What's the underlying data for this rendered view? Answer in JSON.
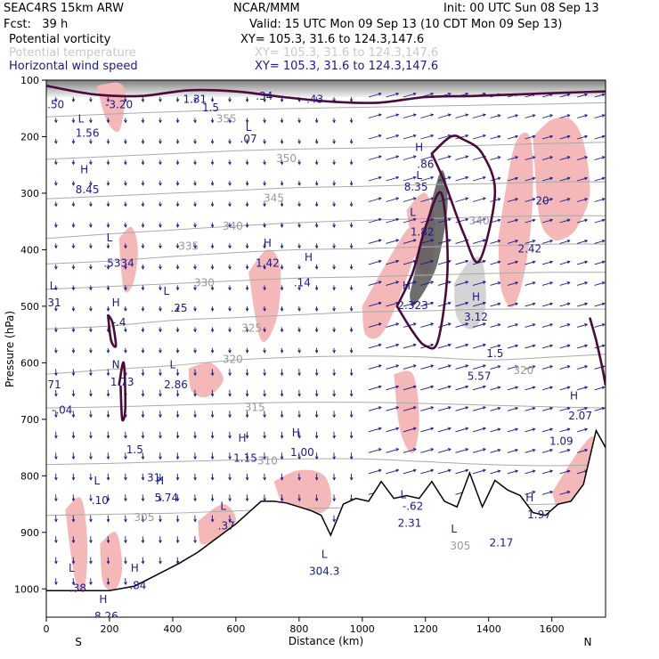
{
  "header": {
    "model": "SEAC4RS 15km ARW",
    "org": "NCAR/MMM",
    "init": "Init: 00 UTC Sun 08 Sep 13",
    "fcst": "Fcst:   39 h",
    "valid": "Valid: 15 UTC Mon 09 Sep 13 (10 CDT Mon 09 Sep 13)",
    "fields": [
      {
        "name": "Potential vorticity",
        "xy": "XY= 105.3, 31.6 to 124.3,147.6",
        "color": "#000000"
      },
      {
        "name": "Potential temperature",
        "xy": "XY= 105.3, 31.6 to 124.3,147.6",
        "color": "#c8c8c8"
      },
      {
        "name": "Horizontal wind speed",
        "xy": "XY= 105.3, 31.6 to 124.3,147.6",
        "color": "#1a1a8c"
      }
    ]
  },
  "colors": {
    "pv_fill": "#f4b8b8",
    "pv_contour": "#4a0a3a",
    "theta": "#aaaaaa",
    "wind": "#1a1a8c",
    "terrain": "#000000"
  },
  "chart_data": {
    "type": "cross-section",
    "xlabel": "Distance (km)",
    "ylabel": "Pressure (hPa)",
    "xlim": [
      0,
      1770
    ],
    "ylim": [
      1050,
      100
    ],
    "x_ticks": [
      "0",
      "200",
      "400",
      "600",
      "800",
      "1000",
      "1200",
      "1400",
      "1600"
    ],
    "x_tick_values": [
      0,
      200,
      400,
      600,
      800,
      1000,
      1200,
      1400,
      1600
    ],
    "y_ticks": [
      "100",
      "200",
      "300",
      "400",
      "500",
      "600",
      "700",
      "800",
      "900",
      "1000"
    ],
    "y_tick_values": [
      100,
      200,
      300,
      400,
      500,
      600,
      700,
      800,
      900,
      1000
    ],
    "end_labels": {
      "left": "S",
      "right": "N"
    },
    "terrain": {
      "x": [
        0,
        100,
        200,
        280,
        350,
        420,
        480,
        540,
        600,
        640,
        680,
        720,
        760,
        800,
        840,
        870,
        900,
        940,
        980,
        1020,
        1060,
        1100,
        1140,
        1180,
        1220,
        1260,
        1300,
        1340,
        1380,
        1420,
        1460,
        1500,
        1540,
        1580,
        1620,
        1660,
        1700,
        1740,
        1770
      ],
      "p": [
        1003,
        1003,
        1003,
        995,
        975,
        955,
        935,
        910,
        885,
        865,
        845,
        845,
        848,
        855,
        862,
        870,
        905,
        850,
        840,
        845,
        810,
        840,
        835,
        840,
        810,
        845,
        855,
        795,
        855,
        808,
        825,
        835,
        865,
        870,
        850,
        845,
        815,
        720,
        750
      ]
    },
    "theta_contours": [
      {
        "label": "305",
        "x": [
          0,
          200,
          400,
          600,
          800,
          1000,
          1200,
          1400,
          1600,
          1770
        ],
        "p": [
          870,
          868,
          866,
          862,
          858,
          856,
          854,
          852,
          850,
          848
        ]
      },
      {
        "label": "310",
        "x": [
          0,
          200,
          400,
          600,
          800,
          1000,
          1200,
          1400,
          1600,
          1770
        ],
        "p": [
          780,
          778,
          775,
          772,
          770,
          770,
          775,
          780,
          782,
          780
        ]
      },
      {
        "label": "315",
        "x": [
          0,
          200,
          400,
          600,
          800,
          1000,
          1200,
          1400,
          1600,
          1770
        ],
        "p": [
          680,
          678,
          675,
          672,
          670,
          670,
          672,
          675,
          678,
          680
        ]
      },
      {
        "label": "320",
        "x": [
          0,
          200,
          400,
          600,
          800,
          1000,
          1200,
          1400,
          1600,
          1770
        ],
        "p": [
          620,
          612,
          605,
          595,
          590,
          588,
          590,
          595,
          590,
          585
        ]
      },
      {
        "label": "325",
        "x": [
          0,
          200,
          400,
          600,
          800,
          1000,
          1200,
          1400,
          1600,
          1770
        ],
        "p": [
          540,
          535,
          525,
          520,
          515,
          510,
          508,
          505,
          505,
          505
        ]
      },
      {
        "label": "330",
        "x": [
          0,
          200,
          400,
          600,
          800,
          1000,
          1200,
          1400,
          1600,
          1770
        ],
        "p": [
          470,
          465,
          460,
          455,
          450,
          448,
          445,
          442,
          440,
          440
        ]
      },
      {
        "label": "335",
        "x": [
          0,
          200,
          400,
          600,
          800,
          1000,
          1200,
          1400,
          1600,
          1770
        ],
        "p": [
          425,
          420,
          412,
          405,
          400,
          398,
          395,
          393,
          390,
          390
        ]
      },
      {
        "label": "340",
        "x": [
          0,
          200,
          400,
          600,
          800,
          1000,
          1200,
          1400,
          1600,
          1770
        ],
        "p": [
          380,
          372,
          365,
          358,
          352,
          348,
          345,
          342,
          340,
          340
        ]
      },
      {
        "label": "345",
        "x": [
          0,
          200,
          400,
          600,
          800,
          1000,
          1200,
          1400,
          1600,
          1770
        ],
        "p": [
          310,
          305,
          300,
          295,
          290,
          288,
          285,
          283,
          280,
          280
        ]
      },
      {
        "label": "350",
        "x": [
          0,
          200,
          400,
          600,
          800,
          1000,
          1200,
          1400,
          1600,
          1770
        ],
        "p": [
          240,
          235,
          230,
          225,
          222,
          220,
          218,
          215,
          212,
          210
        ]
      },
      {
        "label": "355",
        "x": [
          0,
          200,
          400,
          600,
          800,
          1000,
          1200,
          1400,
          1600,
          1770
        ],
        "p": [
          165,
          160,
          156,
          152,
          150,
          148,
          146,
          144,
          142,
          140
        ]
      }
    ],
    "pv_contours": [
      {
        "x": [
          0,
          150,
          300,
          450,
          600,
          750,
          900,
          1050,
          1200,
          1350,
          1500,
          1650,
          1770
        ],
        "p": [
          110,
          125,
          128,
          118,
          120,
          130,
          138,
          140,
          130,
          128,
          125,
          122,
          120
        ]
      },
      {
        "x": [
          1110,
          1160,
          1200,
          1250,
          1270,
          1240,
          1200,
          1160,
          1110
        ],
        "p": [
          500,
          440,
          360,
          300,
          430,
          560,
          570,
          545,
          500
        ]
      },
      {
        "x": [
          1220,
          1280,
          1320,
          1380,
          1420,
          1370,
          1320,
          1260,
          1220
        ],
        "p": [
          230,
          200,
          205,
          230,
          300,
          420,
          370,
          280,
          230
        ]
      },
      {
        "x": [
          1720,
          1740,
          1760,
          1770
        ],
        "p": [
          520,
          560,
          610,
          640
        ]
      },
      {
        "x": [
          230,
          245,
          250,
          240,
          235
        ],
        "p": [
          640,
          600,
          680,
          700,
          640
        ]
      },
      {
        "x": [
          195,
          210,
          220,
          205,
          195
        ],
        "p": [
          515,
          530,
          570,
          560,
          515
        ]
      }
    ],
    "pv_fill_regions": [
      {
        "x": [
          160,
          230,
          250,
          230,
          190,
          160
        ],
        "p": [
          110,
          105,
          130,
          190,
          170,
          110
        ]
      },
      {
        "x": [
          230,
          270,
          290,
          275,
          245,
          230
        ],
        "p": [
          380,
          360,
          400,
          460,
          470,
          380
        ]
      },
      {
        "x": [
          640,
          700,
          740,
          730,
          680,
          640
        ],
        "p": [
          440,
          400,
          430,
          520,
          560,
          440
        ]
      },
      {
        "x": [
          1000,
          1080,
          1150,
          1180,
          1120,
          1060,
          1010,
          1000
        ],
        "p": [
          500,
          420,
          360,
          380,
          480,
          550,
          550,
          500
        ]
      },
      {
        "x": [
          1140,
          1200,
          1230,
          1210,
          1170,
          1140
        ],
        "p": [
          330,
          300,
          360,
          440,
          420,
          330
        ]
      },
      {
        "x": [
          1430,
          1480,
          1530,
          1540,
          1520,
          1480,
          1440,
          1430
        ],
        "p": [
          380,
          220,
          200,
          300,
          420,
          500,
          470,
          380
        ]
      },
      {
        "x": [
          1540,
          1600,
          1660,
          1700,
          1720,
          1680,
          1640,
          1600,
          1560,
          1540
        ],
        "p": [
          200,
          170,
          170,
          210,
          300,
          360,
          380,
          380,
          340,
          200
        ]
      },
      {
        "x": [
          1100,
          1160,
          1180,
          1160,
          1120,
          1100
        ],
        "p": [
          620,
          620,
          700,
          760,
          720,
          620
        ]
      },
      {
        "x": [
          60,
          110,
          130,
          120,
          90,
          60
        ],
        "p": [
          860,
          840,
          920,
          1000,
          980,
          860
        ]
      },
      {
        "x": [
          170,
          220,
          240,
          220,
          180,
          170
        ],
        "p": [
          920,
          900,
          960,
          1000,
          990,
          920
        ]
      },
      {
        "x": [
          480,
          560,
          600,
          540,
          490,
          480
        ],
        "p": [
          880,
          850,
          880,
          910,
          920,
          880
        ]
      },
      {
        "x": [
          720,
          800,
          880,
          900,
          840,
          760,
          720
        ],
        "p": [
          810,
          790,
          800,
          850,
          870,
          860,
          810
        ]
      },
      {
        "x": [
          1600,
          1680,
          1730,
          1740,
          1700,
          1640,
          1600
        ],
        "p": [
          830,
          760,
          730,
          760,
          830,
          880,
          830
        ]
      },
      {
        "x": [
          450,
          520,
          560,
          510,
          460,
          450
        ],
        "p": [
          610,
          600,
          630,
          660,
          650,
          610
        ]
      }
    ],
    "pv_shaded_cores": [
      {
        "x": [
          1150,
          1200,
          1250,
          1270,
          1240,
          1200,
          1160,
          1150
        ],
        "p": [
          480,
          360,
          260,
          320,
          420,
          470,
          500,
          480
        ],
        "color": "#555555"
      },
      {
        "x": [
          1290,
          1340,
          1380,
          1390,
          1350,
          1300,
          1290
        ],
        "p": [
          460,
          420,
          420,
          500,
          540,
          520,
          460
        ],
        "color": "#cccccc"
      }
    ],
    "labels": [
      {
        "text": ".50",
        "x": 30,
        "p": 150
      },
      {
        "text": "-3.20",
        "x": 230,
        "p": 150
      },
      {
        "text": "1.31",
        "x": 470,
        "p": 140
      },
      {
        "text": "1.5",
        "x": 520,
        "p": 155
      },
      {
        "text": ".34",
        "x": 690,
        "p": 135
      },
      {
        "text": ".43",
        "x": 850,
        "p": 140
      },
      {
        "text": "L",
        "x": 110,
        "p": 175
      },
      {
        "text": "1.56",
        "x": 130,
        "p": 200
      },
      {
        "text": "L",
        "x": 640,
        "p": 190
      },
      {
        "text": ".07",
        "x": 640,
        "p": 210
      },
      {
        "text": "355",
        "x": 570,
        "p": 175
      },
      {
        "text": "350",
        "x": 760,
        "p": 245
      },
      {
        "text": "345",
        "x": 720,
        "p": 315
      },
      {
        "text": "340",
        "x": 590,
        "p": 365
      },
      {
        "text": "335",
        "x": 450,
        "p": 400
      },
      {
        "text": "330",
        "x": 500,
        "p": 465
      },
      {
        "text": "325",
        "x": 650,
        "p": 545
      },
      {
        "text": "320",
        "x": 590,
        "p": 600
      },
      {
        "text": "315",
        "x": 660,
        "p": 685
      },
      {
        "text": "310",
        "x": 700,
        "p": 780
      },
      {
        "text": "305",
        "x": 310,
        "p": 880
      },
      {
        "text": "H",
        "x": 120,
        "p": 265
      },
      {
        "text": "8.45",
        "x": 130,
        "p": 300
      },
      {
        "text": "L",
        "x": 200,
        "p": 385
      },
      {
        "text": ".5334",
        "x": 230,
        "p": 430
      },
      {
        "text": "H",
        "x": 700,
        "p": 395
      },
      {
        "text": "1.42",
        "x": 700,
        "p": 430
      },
      {
        "text": "H",
        "x": 830,
        "p": 420
      },
      {
        "text": ".14",
        "x": 810,
        "p": 465
      },
      {
        "text": "L",
        "x": 380,
        "p": 480
      },
      {
        "text": ".25",
        "x": 420,
        "p": 510
      },
      {
        "text": "L",
        "x": 20,
        "p": 470
      },
      {
        "text": ".31",
        "x": 20,
        "p": 500
      },
      {
        "text": "H",
        "x": 220,
        "p": 500
      },
      {
        "text": "-.4",
        "x": 230,
        "p": 535
      },
      {
        "text": "N",
        "x": 220,
        "p": 610
      },
      {
        "text": "1.73",
        "x": 240,
        "p": 640
      },
      {
        "text": "L",
        "x": 400,
        "p": 610
      },
      {
        "text": "2.86",
        "x": 410,
        "p": 645
      },
      {
        "text": ".71",
        "x": 20,
        "p": 645
      },
      {
        "text": "-.04",
        "x": 50,
        "p": 690
      },
      {
        "text": "1.5",
        "x": 280,
        "p": 760
      },
      {
        "text": "H",
        "x": 620,
        "p": 740
      },
      {
        "text": "1.15",
        "x": 630,
        "p": 775
      },
      {
        "text": "H",
        "x": 790,
        "p": 730
      },
      {
        "text": "1.00",
        "x": 810,
        "p": 765
      },
      {
        "text": "31",
        "x": 340,
        "p": 810
      },
      {
        "text": "H",
        "x": 360,
        "p": 815
      },
      {
        "text": "5.74",
        "x": 380,
        "p": 845
      },
      {
        "text": "L",
        "x": 160,
        "p": 815
      },
      {
        "text": ".10",
        "x": 170,
        "p": 850
      },
      {
        "text": "L",
        "x": 560,
        "p": 860
      },
      {
        "text": ".37",
        "x": 570,
        "p": 895
      },
      {
        "text": "L",
        "x": 880,
        "p": 945
      },
      {
        "text": "304.3",
        "x": 880,
        "p": 975
      },
      {
        "text": "L",
        "x": 80,
        "p": 970
      },
      {
        "text": ".38",
        "x": 100,
        "p": 1005
      },
      {
        "text": "H",
        "x": 280,
        "p": 970
      },
      {
        "text": ".84",
        "x": 290,
        "p": 1000
      },
      {
        "text": "H",
        "x": 180,
        "p": 1025
      },
      {
        "text": "8.26",
        "x": 190,
        "p": 1055
      },
      {
        "text": "H",
        "x": 1180,
        "p": 225
      },
      {
        "text": ".86",
        "x": 1200,
        "p": 255
      },
      {
        "text": "L",
        "x": 1180,
        "p": 275
      },
      {
        "text": "8.35",
        "x": 1170,
        "p": 295
      },
      {
        "text": "L",
        "x": 1160,
        "p": 340
      },
      {
        "text": "1.82",
        "x": 1190,
        "p": 375
      },
      {
        "text": "H",
        "x": 1140,
        "p": 470
      },
      {
        "text": "2.323",
        "x": 1160,
        "p": 505
      },
      {
        "text": "H",
        "x": 1360,
        "p": 490
      },
      {
        "text": "3.12",
        "x": 1360,
        "p": 525
      },
      {
        "text": "1.5",
        "x": 1420,
        "p": 590
      },
      {
        "text": "5.57",
        "x": 1370,
        "p": 630
      },
      {
        "text": "320",
        "x": 1510,
        "p": 620
      },
      {
        "text": "340",
        "x": 1370,
        "p": 355
      },
      {
        "text": "20",
        "x": 1570,
        "p": 320
      },
      {
        "text": "2.42",
        "x": 1530,
        "p": 405
      },
      {
        "text": "H",
        "x": 1670,
        "p": 665
      },
      {
        "text": "2.07",
        "x": 1690,
        "p": 700
      },
      {
        "text": "1.09",
        "x": 1630,
        "p": 745
      },
      {
        "text": "L",
        "x": 1130,
        "p": 840
      },
      {
        "text": "-.62",
        "x": 1160,
        "p": 860
      },
      {
        "text": "2.31",
        "x": 1150,
        "p": 890
      },
      {
        "text": "L",
        "x": 1290,
        "p": 900
      },
      {
        "text": "305",
        "x": 1310,
        "p": 930
      },
      {
        "text": "2.17",
        "x": 1440,
        "p": 925
      },
      {
        "text": "H",
        "x": 1530,
        "p": 845
      },
      {
        "text": "1.97",
        "x": 1560,
        "p": 875
      }
    ]
  }
}
